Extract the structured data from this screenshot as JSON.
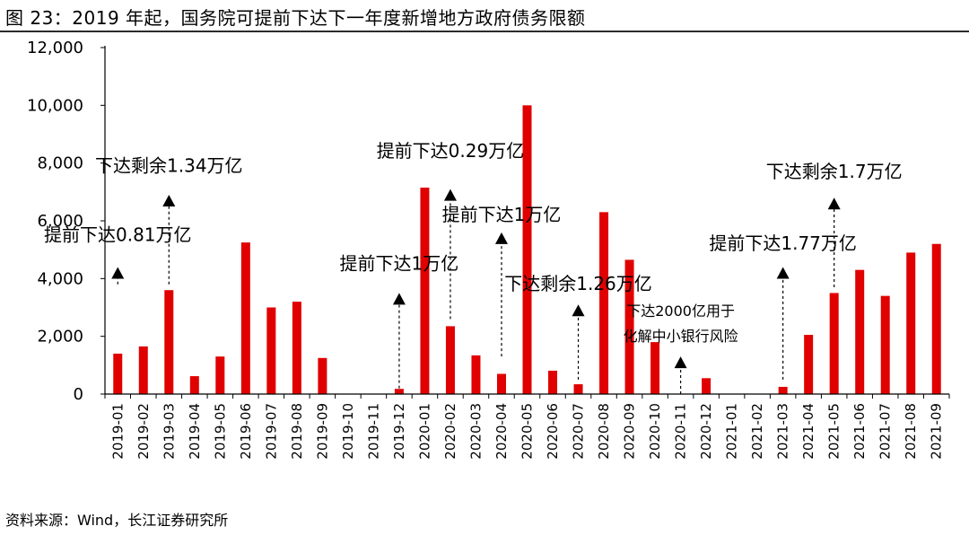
{
  "title": "图 23：2019 年起，国务院可提前下达下一年度新增地方政府债务限额",
  "source": "资料来源：Wind，长江证券研究所",
  "colors": {
    "bar": "#e00000",
    "axis": "#000000",
    "arrow": "#000000"
  },
  "chart_data": {
    "type": "bar",
    "title": "2019 年起，国务院可提前下达下一年度新增地方政府债务限额",
    "xlabel": "",
    "ylabel": "",
    "ylim": [
      0,
      12000
    ],
    "yticks": [
      0,
      2000,
      4000,
      6000,
      8000,
      10000,
      12000
    ],
    "ytick_labels": [
      "0",
      "2,000",
      "4,000",
      "6,000",
      "8,000",
      "10,000",
      "12,000"
    ],
    "grid": false,
    "categories": [
      "2019-01",
      "2019-02",
      "2019-03",
      "2019-04",
      "2019-05",
      "2019-06",
      "2019-07",
      "2019-08",
      "2019-09",
      "2019-10",
      "2019-11",
      "2019-12",
      "2020-01",
      "2020-02",
      "2020-03",
      "2020-04",
      "2020-05",
      "2020-06",
      "2020-07",
      "2020-08",
      "2020-09",
      "2020-10",
      "2020-11",
      "2020-12",
      "2021-01",
      "2021-02",
      "2021-03",
      "2021-04",
      "2021-05",
      "2021-06",
      "2021-07",
      "2021-08",
      "2021-09"
    ],
    "values": [
      1400,
      1650,
      3600,
      620,
      1300,
      5250,
      3000,
      3200,
      1250,
      0,
      0,
      180,
      7150,
      2350,
      1340,
      700,
      10000,
      810,
      340,
      6300,
      4650,
      1800,
      0,
      550,
      0,
      0,
      250,
      2050,
      3500,
      4300,
      3400,
      4900,
      5200
    ],
    "annotations": [
      {
        "category": "2019-01",
        "text": "提前下达0.81万亿",
        "arrow_from": 3800,
        "arrow_to": 4400,
        "text_at": 5300
      },
      {
        "category": "2019-03",
        "text": "下达剩余1.34万亿",
        "arrow_from": 3800,
        "arrow_to": 6900,
        "text_at": 7700
      },
      {
        "category": "2019-12",
        "text": "提前下达1万亿",
        "arrow_from": 200,
        "arrow_to": 3500,
        "text_at": 4300
      },
      {
        "category": "2020-02",
        "text": "提前下达0.29万亿",
        "arrow_from": 2600,
        "arrow_to": 7100,
        "text_at": 8200
      },
      {
        "category": "2020-04",
        "text": "提前下达1万亿",
        "arrow_from": 1300,
        "arrow_to": 5600,
        "text_at": 6000
      },
      {
        "category": "2020-07",
        "text": "下达剩余1.26万亿",
        "arrow_from": 500,
        "arrow_to": 3100,
        "text_at": 3600
      },
      {
        "category": "2020-11",
        "text": "下达2000亿用于",
        "text2": "化解中小银行风险",
        "arrow_from": 0,
        "arrow_to": 1300,
        "text_at": 2700
      },
      {
        "category": "2021-03",
        "text": "提前下达1.77万亿",
        "arrow_from": 500,
        "arrow_to": 4400,
        "text_at": 5000
      },
      {
        "category": "2021-05",
        "text": "下达剩余1.7万亿",
        "arrow_from": 3700,
        "arrow_to": 6800,
        "text_at": 7500
      }
    ]
  }
}
